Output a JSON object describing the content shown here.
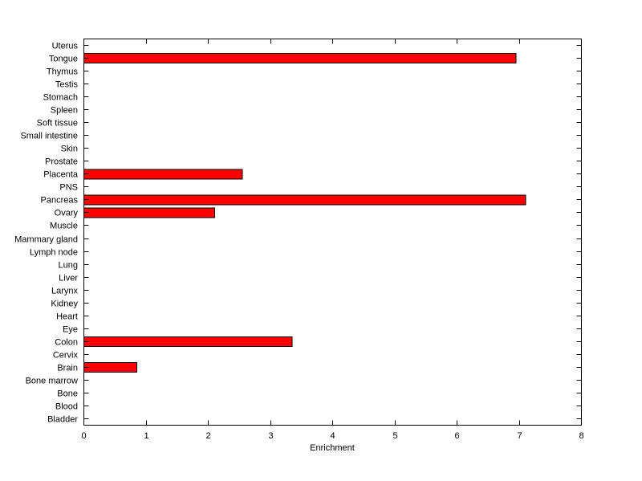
{
  "figure": {
    "background_color": "#ffffff",
    "plot_background_color": "#ffffff",
    "axis_color": "#000000"
  },
  "chart_data": {
    "type": "bar",
    "orientation": "horizontal",
    "title": "",
    "xlabel": "Enrichment",
    "ylabel": "",
    "xlim": [
      0,
      8
    ],
    "xticks": [
      0,
      1,
      2,
      3,
      4,
      5,
      6,
      7,
      8
    ],
    "grid": false,
    "legend": null,
    "bar_color": "#ff0000",
    "bar_edge_color": "#000000",
    "categories": [
      "Uterus",
      "Tongue",
      "Thymus",
      "Testis",
      "Stomach",
      "Spleen",
      "Soft tissue",
      "Small intestine",
      "Skin",
      "Prostate",
      "Placenta",
      "PNS",
      "Pancreas",
      "Ovary",
      "Muscle",
      "Mammary gland",
      "Lymph node",
      "Lung",
      "Liver",
      "Larynx",
      "Kidney",
      "Heart",
      "Eye",
      "Colon",
      "Cervix",
      "Brain",
      "Bone marrow",
      "Bone",
      "Blood",
      "Bladder"
    ],
    "values": [
      0,
      6.95,
      0,
      0,
      0,
      0,
      0,
      0,
      0,
      0,
      2.55,
      0,
      7.1,
      2.1,
      0,
      0,
      0,
      0,
      0,
      0,
      0,
      0,
      0,
      3.35,
      0,
      0.85,
      0,
      0,
      0,
      0
    ]
  }
}
